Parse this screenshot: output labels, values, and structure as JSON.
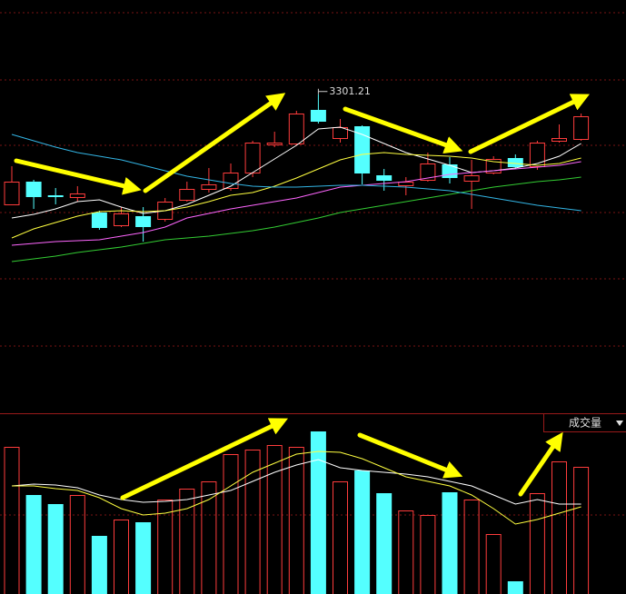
{
  "chart_data": [
    {
      "type": "candlestick",
      "up_color": "#ff3c3c",
      "down_color": "#54ffff",
      "ylim": [
        2965,
        3405
      ],
      "open": [
        3180,
        3205,
        3190,
        3188,
        3171,
        3157,
        3167,
        3164,
        3185,
        3197,
        3198,
        3215,
        3246,
        3247,
        3284,
        3253,
        3266,
        3212,
        3201,
        3207,
        3224,
        3206,
        3215,
        3231,
        3222,
        3250,
        3252
      ],
      "close": [
        3205,
        3189,
        3190,
        3192,
        3155,
        3170,
        3156,
        3183,
        3197,
        3202,
        3215,
        3248,
        3248,
        3280,
        3272,
        3265,
        3215,
        3207,
        3205,
        3225,
        3210,
        3212,
        3230,
        3222,
        3248,
        3253,
        3277
      ],
      "high": [
        3222,
        3207,
        3198,
        3200,
        3173,
        3177,
        3177,
        3187,
        3205,
        3220,
        3225,
        3250,
        3260,
        3283,
        3301.21,
        3274,
        3267,
        3219,
        3210,
        3237,
        3232,
        3229,
        3233,
        3235,
        3250,
        3268,
        3280
      ],
      "low": [
        3180,
        3175,
        3180,
        3183,
        3152,
        3155,
        3139,
        3161,
        3183,
        3193,
        3195,
        3210,
        3243,
        3245,
        3269,
        3248,
        3202,
        3195,
        3190,
        3205,
        3203,
        3175,
        3213,
        3219,
        3218,
        3248,
        3250
      ],
      "series": [
        {
          "color": "#ffffff",
          "values": [
            3165,
            3169,
            3175,
            3183,
            3185,
            3177,
            3170,
            3173,
            3180,
            3190,
            3200,
            3215,
            3230,
            3245,
            3263,
            3265,
            3257,
            3247,
            3237,
            3230,
            3223,
            3215,
            3217,
            3220,
            3225,
            3233,
            3247
          ]
        },
        {
          "color": "#ffff40",
          "values": [
            3143,
            3153,
            3160,
            3167,
            3172,
            3173,
            3172,
            3173,
            3177,
            3183,
            3190,
            3193,
            3200,
            3209,
            3219,
            3229,
            3235,
            3237,
            3235,
            3234,
            3233,
            3231,
            3227,
            3225,
            3223,
            3225,
            3231
          ]
        },
        {
          "color": "#ff66ff",
          "values": [
            3135,
            3137,
            3139,
            3140,
            3141,
            3145,
            3149,
            3155,
            3165,
            3170,
            3175,
            3179,
            3183,
            3187,
            3193,
            3199,
            3201,
            3203,
            3205,
            3209,
            3213,
            3215,
            3217,
            3219,
            3221,
            3223,
            3227
          ]
        },
        {
          "color": "#33cc33",
          "values": [
            3117,
            3120,
            3123,
            3127,
            3130,
            3133,
            3137,
            3141,
            3143,
            3145,
            3148,
            3151,
            3155,
            3160,
            3165,
            3171,
            3175,
            3179,
            3183,
            3187,
            3191,
            3195,
            3199,
            3202,
            3205,
            3207,
            3210
          ]
        },
        {
          "color": "#33b5e5",
          "values": [
            3257,
            3250,
            3243,
            3237,
            3233,
            3229,
            3223,
            3217,
            3211,
            3207,
            3203,
            3200,
            3199,
            3199,
            3200,
            3201,
            3201,
            3200,
            3199,
            3197,
            3195,
            3191,
            3187,
            3183,
            3179,
            3176,
            3173
          ]
        }
      ],
      "annotations": [
        {
          "label": "3301.21"
        }
      ]
    },
    {
      "type": "bar",
      "title": "成交量",
      "ylim": [
        0,
        199
      ],
      "values": [
        162,
        109,
        99,
        109,
        64,
        82,
        79,
        104,
        116,
        124,
        154,
        159,
        164,
        162,
        179,
        124,
        136,
        111,
        92,
        87,
        112,
        104,
        66,
        14,
        111,
        146,
        140
      ],
      "series": [
        {
          "color": "#ffffff",
          "values": [
            119,
            121,
            120,
            117,
            109,
            104,
            101,
            102,
            104,
            109,
            114,
            124,
            134,
            142,
            148,
            139,
            136,
            134,
            132,
            129,
            124,
            119,
            109,
            99,
            104,
            99,
            99
          ]
        },
        {
          "color": "#ffff40",
          "values": [
            119,
            119,
            116,
            114,
            106,
            94,
            87,
            89,
            94,
            104,
            119,
            134,
            144,
            154,
            157,
            156,
            149,
            139,
            129,
            124,
            119,
            109,
            94,
            77,
            82,
            89,
            96
          ]
        }
      ]
    }
  ]
}
